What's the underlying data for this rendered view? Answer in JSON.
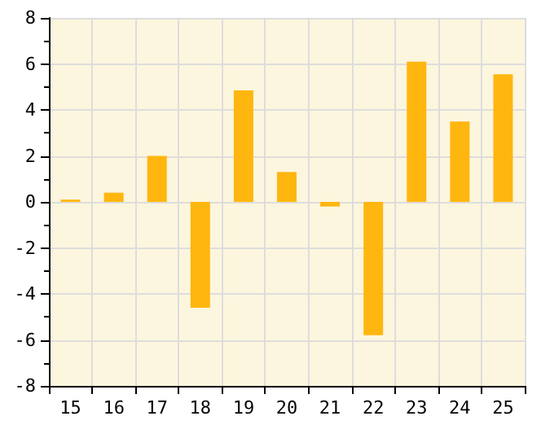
{
  "chart_data": {
    "type": "bar",
    "categories": [
      "15",
      "16",
      "17",
      "18",
      "19",
      "20",
      "21",
      "22",
      "23",
      "24",
      "25"
    ],
    "values": [
      0.1,
      0.4,
      2.0,
      -4.6,
      4.85,
      1.3,
      -0.2,
      -5.8,
      6.1,
      3.5,
      5.55
    ],
    "color": "#ffb60f",
    "ylim": [
      -8,
      8
    ],
    "yticks": [
      -8,
      -6,
      -4,
      -2,
      0,
      2,
      4,
      6,
      8
    ],
    "grid": true
  }
}
